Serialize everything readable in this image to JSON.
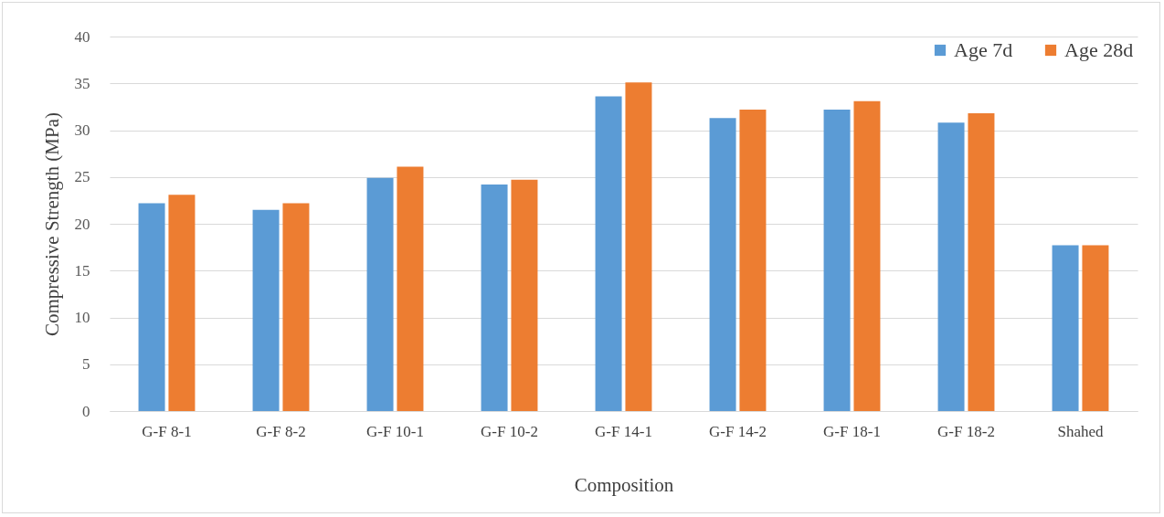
{
  "chart_data": {
    "type": "bar",
    "xlabel": "Composition",
    "ylabel": "Compressive Strength (MPa)",
    "categories": [
      "G-F 8-1",
      "G-F 8-2",
      "G-F 10-1",
      "G-F 10-2",
      "G-F 14-1",
      "G-F 14-2",
      "G-F 18-1",
      "G-F 18-2",
      "Shahed"
    ],
    "series": [
      {
        "name": "Age 7d",
        "color": "#5b9bd5",
        "values": [
          22.2,
          21.5,
          24.9,
          24.2,
          33.6,
          31.3,
          32.2,
          30.8,
          17.7
        ]
      },
      {
        "name": "Age 28d",
        "color": "#ed7d31",
        "values": [
          23.1,
          22.2,
          26.1,
          24.7,
          35.1,
          32.2,
          33.1,
          31.8,
          17.7
        ]
      }
    ],
    "ylim": [
      0,
      40
    ],
    "yticks": [
      0,
      5,
      10,
      15,
      20,
      25,
      30,
      35,
      40
    ],
    "grid": "y",
    "legend": "top right"
  }
}
